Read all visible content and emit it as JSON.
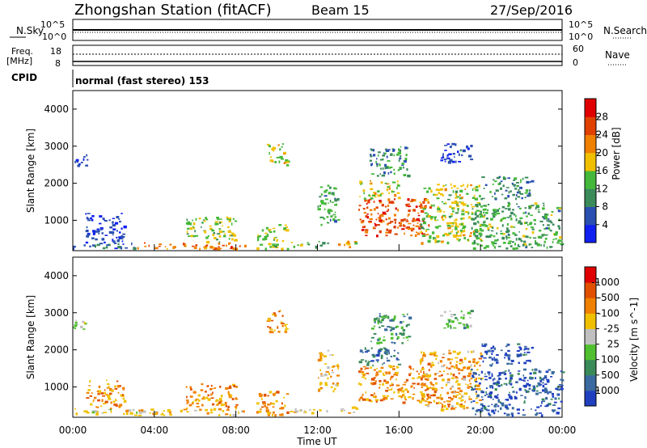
{
  "header": {
    "station": "Zhongshan Station (fitACF)",
    "beam": "Beam 15",
    "date": "27/Sep/2016"
  },
  "top_panels": {
    "nsky_label": "N.Sky",
    "nsearch_label": "N.Search",
    "log_ticks": [
      "10^5",
      "10^0"
    ],
    "freq_label_1": "Freq.",
    "freq_label_2": "[MHz]",
    "freq_ticks": [
      "18",
      "8"
    ],
    "nave_label": "Nave",
    "nave_ticks": [
      "60",
      "0"
    ],
    "cpid_label": "CPID",
    "cpid_text": "normal (fast stereo) 153"
  },
  "x_axis": {
    "label": "Time UT",
    "ticks": [
      "00:00",
      "04:00",
      "08:00",
      "12:00",
      "16:00",
      "20:00",
      "00:00"
    ]
  },
  "chart_data": [
    {
      "type": "heatmap",
      "title": "Power",
      "ylabel": "Slant Range [km]",
      "xlabel": "Time UT",
      "ylim": [
        180,
        4500
      ],
      "y_ticks": [
        1000,
        2000,
        3000,
        4000
      ],
      "colorbar": {
        "label": "Power [dB]",
        "ticks": [
          4,
          8,
          12,
          16,
          20,
          24,
          28
        ],
        "colors": [
          "#1020f0",
          "#2a4fb0",
          "#3a8a5a",
          "#44b83a",
          "#f0c000",
          "#f08000",
          "#e04000",
          "#e00000"
        ]
      },
      "regions": [
        {
          "t": [
            0.0,
            3.2
          ],
          "r": [
            250,
            420
          ],
          "level": 0.25
        },
        {
          "t": [
            0.0,
            0.7
          ],
          "r": [
            2500,
            2850
          ],
          "level": 0.1
        },
        {
          "t": [
            0.6,
            2.5
          ],
          "r": [
            420,
            1200
          ],
          "level": 0.12
        },
        {
          "t": [
            3.0,
            8.5
          ],
          "r": [
            250,
            420
          ],
          "level": 0.75
        },
        {
          "t": [
            5.5,
            8.0
          ],
          "r": [
            420,
            1100
          ],
          "level": 0.45
        },
        {
          "t": [
            9.0,
            10.5
          ],
          "r": [
            250,
            900
          ],
          "level": 0.5
        },
        {
          "t": [
            9.5,
            10.5
          ],
          "r": [
            2500,
            3100
          ],
          "level": 0.55
        },
        {
          "t": [
            10.5,
            12.5
          ],
          "r": [
            300,
            450
          ],
          "level": 0.4
        },
        {
          "t": [
            12.0,
            13.0
          ],
          "r": [
            900,
            2000
          ],
          "level": 0.35
        },
        {
          "t": [
            13.0,
            14.0
          ],
          "r": [
            300,
            500
          ],
          "level": 0.6
        },
        {
          "t": [
            14.0,
            17.5
          ],
          "r": [
            600,
            1600
          ],
          "level": 0.8
        },
        {
          "t": [
            14.0,
            16.0
          ],
          "r": [
            1600,
            2100
          ],
          "level": 0.55
        },
        {
          "t": [
            14.5,
            16.5
          ],
          "r": [
            2200,
            3000
          ],
          "level": 0.3
        },
        {
          "t": [
            17.0,
            20.0
          ],
          "r": [
            400,
            2000
          ],
          "level": 0.5
        },
        {
          "t": [
            18.0,
            19.5
          ],
          "r": [
            2600,
            3100
          ],
          "level": 0.12
        },
        {
          "t": [
            19.5,
            24.0
          ],
          "r": [
            250,
            1500
          ],
          "level": 0.38
        },
        {
          "t": [
            20.0,
            22.5
          ],
          "r": [
            1600,
            2200
          ],
          "level": 0.3
        }
      ]
    },
    {
      "type": "heatmap",
      "title": "Velocity",
      "ylabel": "Slant Range [km]",
      "xlabel": "Time UT",
      "ylim": [
        180,
        4500
      ],
      "y_ticks": [
        1000,
        2000,
        3000,
        4000
      ],
      "colorbar": {
        "label": "Velocity [m s^-1]",
        "ticks": [
          "1000",
          "500",
          "100",
          "25",
          "-25",
          "-100",
          "-500",
          "-1000"
        ],
        "colors": [
          "#2040c0",
          "#3a6aa0",
          "#3a8a5a",
          "#50c030",
          "#c0c0c0",
          "#f0c000",
          "#f08000",
          "#e05000",
          "#e00000"
        ]
      },
      "regions": [
        {
          "t": [
            0.0,
            3.2
          ],
          "r": [
            250,
            420
          ],
          "level": 0.55
        },
        {
          "t": [
            0.0,
            0.7
          ],
          "r": [
            2500,
            2850
          ],
          "level": 0.45
        },
        {
          "t": [
            0.6,
            2.5
          ],
          "r": [
            420,
            1200
          ],
          "level": 0.7
        },
        {
          "t": [
            3.0,
            8.5
          ],
          "r": [
            250,
            420
          ],
          "level": 0.62
        },
        {
          "t": [
            5.5,
            8.0
          ],
          "r": [
            420,
            1100
          ],
          "level": 0.75
        },
        {
          "t": [
            9.0,
            10.5
          ],
          "r": [
            250,
            900
          ],
          "level": 0.7
        },
        {
          "t": [
            9.5,
            10.5
          ],
          "r": [
            2500,
            3100
          ],
          "level": 0.7
        },
        {
          "t": [
            10.5,
            12.5
          ],
          "r": [
            300,
            450
          ],
          "level": 0.6
        },
        {
          "t": [
            12.0,
            13.0
          ],
          "r": [
            900,
            2000
          ],
          "level": 0.65
        },
        {
          "t": [
            13.0,
            14.0
          ],
          "r": [
            300,
            500
          ],
          "level": 0.62
        },
        {
          "t": [
            14.0,
            17.5
          ],
          "r": [
            600,
            1600
          ],
          "level": 0.7
        },
        {
          "t": [
            14.0,
            16.0
          ],
          "r": [
            1600,
            2100
          ],
          "level": 0.2
        },
        {
          "t": [
            14.5,
            16.5
          ],
          "r": [
            2200,
            3000
          ],
          "level": 0.3
        },
        {
          "t": [
            17.0,
            20.0
          ],
          "r": [
            400,
            2000
          ],
          "level": 0.68
        },
        {
          "t": [
            18.0,
            19.5
          ],
          "r": [
            2600,
            3100
          ],
          "level": 0.35
        },
        {
          "t": [
            19.5,
            24.0
          ],
          "r": [
            250,
            1500
          ],
          "level": 0.12
        },
        {
          "t": [
            20.0,
            22.5
          ],
          "r": [
            1600,
            2200
          ],
          "level": 0.1
        }
      ]
    }
  ]
}
